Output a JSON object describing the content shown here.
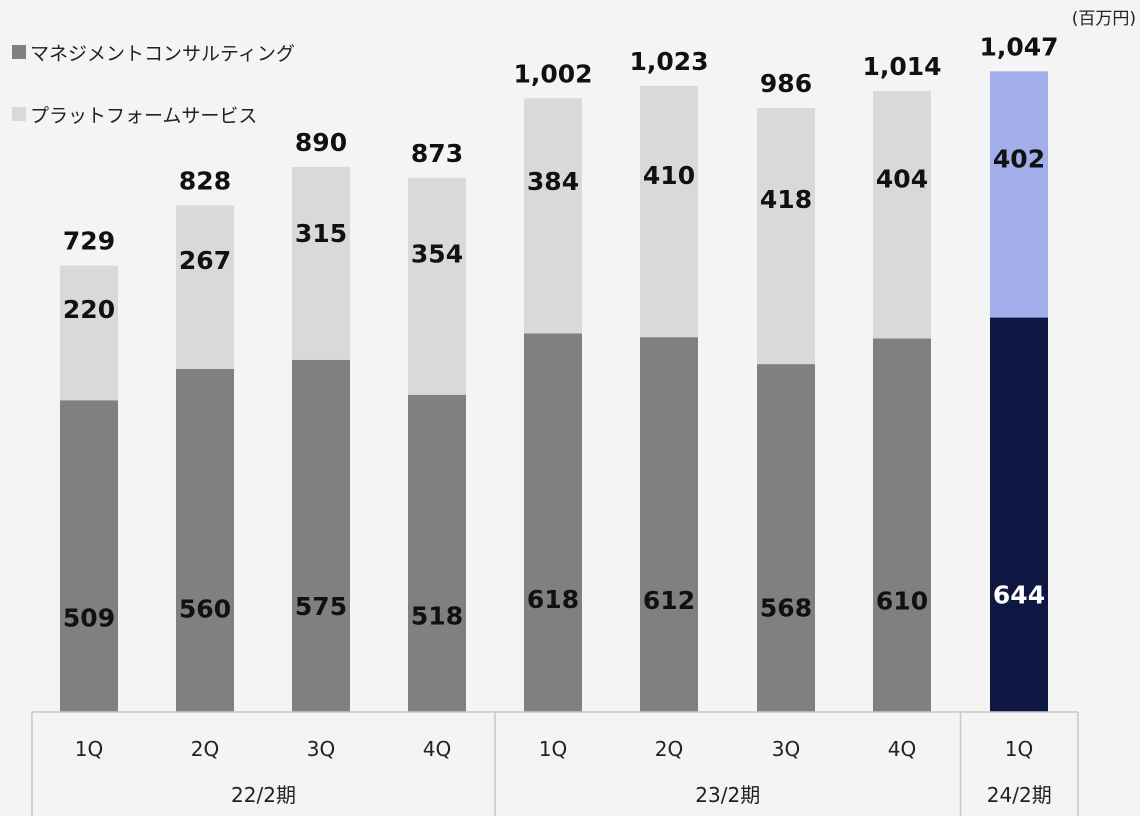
{
  "chart_data": {
    "type": "bar",
    "stacked": true,
    "unit_label": "(百万円)",
    "categories": [
      "1Q",
      "2Q",
      "3Q",
      "4Q",
      "1Q",
      "2Q",
      "3Q",
      "4Q",
      "1Q"
    ],
    "groups": [
      {
        "label": "22/2期",
        "count": 4
      },
      {
        "label": "23/2期",
        "count": 4
      },
      {
        "label": "24/2期",
        "count": 1
      }
    ],
    "series": [
      {
        "name": "マネジメントコンサルティング",
        "values": [
          509,
          560,
          575,
          518,
          618,
          612,
          568,
          610,
          644
        ]
      },
      {
        "name": "プラットフォームサービス",
        "values": [
          220,
          267,
          315,
          354,
          384,
          410,
          418,
          404,
          402
        ]
      }
    ],
    "totals": [
      "729",
      "828",
      "890",
      "873",
      "1,002",
      "1,023",
      "986",
      "1,014",
      "1,047"
    ],
    "ylim": [
      0,
      1100
    ],
    "grid": false,
    "legend_position": "top-left",
    "colors": {
      "series_default": [
        "#808080",
        "#d9d9d9"
      ],
      "highlight_last": [
        "#0e1642",
        "#a2aeea"
      ],
      "label_default": [
        "#111111",
        "#111111"
      ],
      "label_highlight": [
        "#ffffff",
        "#111111"
      ],
      "legend_markers": [
        "#808080",
        "#d9d9d9"
      ],
      "axis_line": "#c8c8c8"
    }
  }
}
